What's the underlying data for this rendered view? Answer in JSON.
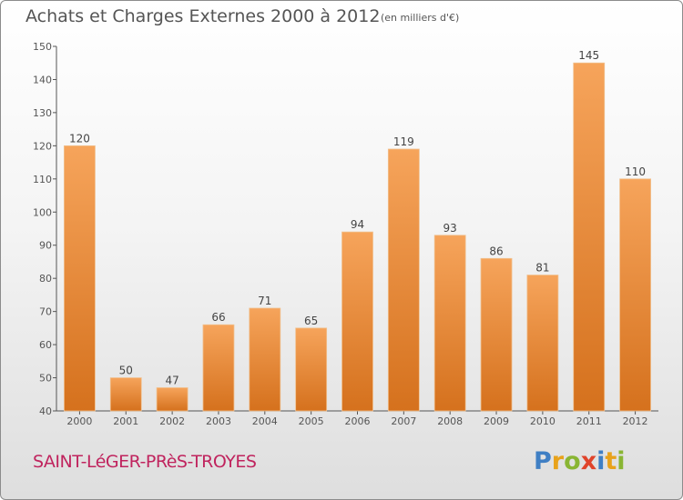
{
  "header": {
    "title": "Achats et Charges Externes 2000 à 2012",
    "subtitle": "(en milliers d'€)"
  },
  "footer": {
    "town": "SAINT-LéGER-PRèS-TROYES",
    "logo_text": "Proxiti"
  },
  "colors": {
    "bar_top": "#f6a45b",
    "bar_bottom": "#d5711d",
    "town_text": "#c0245e",
    "axis": "#555555"
  },
  "chart_data": {
    "type": "bar",
    "title": "Achats et Charges Externes 2000 à 2012",
    "subtitle": "(en milliers d'€)",
    "categories": [
      "2000",
      "2001",
      "2002",
      "2003",
      "2004",
      "2005",
      "2006",
      "2007",
      "2008",
      "2009",
      "2010",
      "2011",
      "2012"
    ],
    "values": [
      120,
      50,
      47,
      66,
      71,
      65,
      94,
      119,
      93,
      86,
      81,
      145,
      110
    ],
    "xlabel": "",
    "ylabel": "",
    "ylim": [
      40,
      150
    ],
    "yticks": [
      40,
      50,
      60,
      70,
      80,
      90,
      100,
      110,
      120,
      130,
      140,
      150
    ],
    "grid": false,
    "data_labels": true
  }
}
